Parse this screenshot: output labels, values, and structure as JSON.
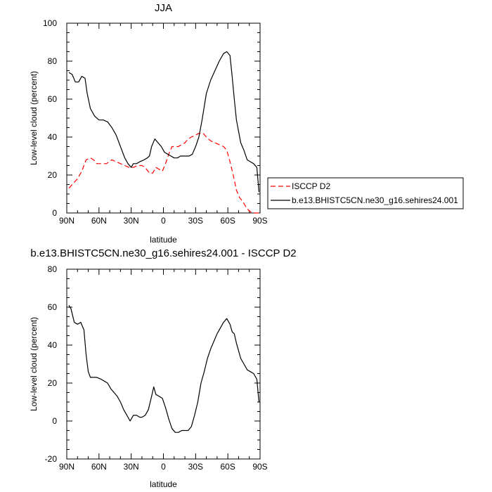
{
  "chart_data": [
    {
      "type": "line",
      "title": "JJA",
      "xlabel": "latitude",
      "ylabel": "Low-level cloud (percent)",
      "xlim": [
        -90,
        90
      ],
      "ylim": [
        0,
        100
      ],
      "x_ticks": [
        -90,
        -60,
        -30,
        0,
        30,
        60,
        90
      ],
      "x_tick_labels": [
        "90N",
        "60N",
        "30N",
        "0",
        "30S",
        "60S",
        "90S"
      ],
      "y_ticks": [
        0,
        20,
        40,
        60,
        80,
        100
      ],
      "y_tick_labels": [
        "0",
        "20",
        "40",
        "60",
        "80",
        "100"
      ],
      "legend_placement": "right, outside plot",
      "series": [
        {
          "name": "ISCCP D2",
          "color": "#ff0000",
          "dash": "dashed",
          "x": [
            -88,
            -85,
            -80,
            -76,
            -72,
            -68,
            -65,
            -62,
            -57,
            -53,
            -48,
            -44,
            -40,
            -36,
            -32,
            -28,
            -24,
            -20,
            -17,
            -13,
            -10,
            -7,
            -4,
            -1,
            2,
            5,
            8,
            11,
            14,
            17,
            20,
            23,
            26,
            30,
            33,
            37,
            40,
            44,
            48,
            52,
            56,
            59,
            62,
            65,
            68,
            71,
            74,
            77,
            80,
            83,
            86,
            89
          ],
          "y": [
            13,
            15,
            18,
            22,
            28,
            29,
            28,
            26,
            26,
            26,
            28,
            27,
            26,
            25,
            24,
            24,
            25,
            25,
            24,
            21,
            21,
            24,
            23,
            22,
            26,
            31,
            35,
            35,
            35,
            36,
            37,
            39,
            40,
            41,
            42,
            42,
            40,
            38,
            37,
            36,
            35,
            33,
            27,
            20,
            12,
            8,
            6,
            3,
            1,
            0,
            0,
            0
          ]
        },
        {
          "name": "b.e13.BHISTC5CN.ne30_g16.sehires24.001",
          "color": "#000000",
          "dash": "solid",
          "x": [
            -88,
            -85,
            -82,
            -79,
            -76,
            -73,
            -71,
            -68,
            -64,
            -60,
            -56,
            -52,
            -48,
            -44,
            -40,
            -36,
            -33,
            -30,
            -28,
            -25,
            -22,
            -18,
            -15,
            -13,
            -11,
            -8,
            -5,
            -2,
            1,
            4,
            7,
            10,
            13,
            16,
            20,
            24,
            27,
            30,
            33,
            36,
            40,
            44,
            48,
            52,
            56,
            59,
            62,
            64,
            66,
            68,
            70,
            72,
            75,
            78,
            81,
            84,
            87,
            89
          ],
          "y": [
            74,
            73,
            69,
            69,
            72,
            71,
            63,
            55,
            51,
            49,
            49,
            48,
            45,
            41,
            35,
            29,
            26,
            24,
            26,
            26,
            27,
            28,
            29,
            30,
            35,
            39,
            37,
            35,
            32,
            31,
            30,
            29,
            29,
            30,
            30,
            30,
            31,
            35,
            40,
            49,
            63,
            70,
            75,
            80,
            84,
            85,
            83,
            72,
            60,
            49,
            43,
            37,
            33,
            28,
            27,
            26,
            24,
            11
          ]
        }
      ]
    },
    {
      "type": "line",
      "title": "b.e13.BHISTC5CN.ne30_g16.sehires24.001 - ISCCP D2",
      "xlabel": "latitude",
      "ylabel": "Low-level cloud (percent)",
      "xlim": [
        -90,
        90
      ],
      "ylim": [
        -20,
        80
      ],
      "x_ticks": [
        -90,
        -60,
        -30,
        0,
        30,
        60,
        90
      ],
      "x_tick_labels": [
        "90N",
        "60N",
        "30N",
        "0",
        "30S",
        "60S",
        "90S"
      ],
      "y_ticks": [
        -20,
        0,
        20,
        40,
        60,
        80
      ],
      "y_tick_labels": [
        "-20",
        "0",
        "20",
        "40",
        "60",
        "80"
      ],
      "series": [
        {
          "color": "#000000",
          "dash": "solid",
          "x": [
            -88,
            -86,
            -83,
            -80,
            -77,
            -74,
            -72,
            -70,
            -68,
            -66,
            -62,
            -58,
            -55,
            -52,
            -49,
            -46,
            -43,
            -40,
            -37,
            -34,
            -31,
            -28,
            -25,
            -22,
            -20,
            -17,
            -14,
            -11,
            -9,
            -7,
            -4,
            -1,
            2,
            5,
            8,
            11,
            14,
            17,
            20,
            23,
            26,
            29,
            32,
            35,
            38,
            41,
            44,
            47,
            50,
            53,
            56,
            59,
            62,
            64,
            66,
            68,
            70,
            72,
            75,
            78,
            81,
            84,
            87,
            89
          ],
          "y": [
            61,
            59,
            52,
            51,
            52,
            48,
            35,
            26,
            23,
            23,
            23,
            22,
            21,
            20,
            17,
            15,
            13,
            10,
            6,
            3,
            0,
            3,
            3,
            2,
            2,
            3,
            6,
            13,
            18,
            14,
            13,
            12,
            7,
            1,
            -4,
            -6,
            -6,
            -5,
            -5,
            -5,
            -3,
            3,
            10,
            20,
            26,
            33,
            38,
            42,
            46,
            49,
            52,
            54,
            51,
            47,
            46,
            41,
            37,
            33,
            30,
            27,
            26,
            25,
            22,
            10
          ]
        }
      ]
    }
  ]
}
